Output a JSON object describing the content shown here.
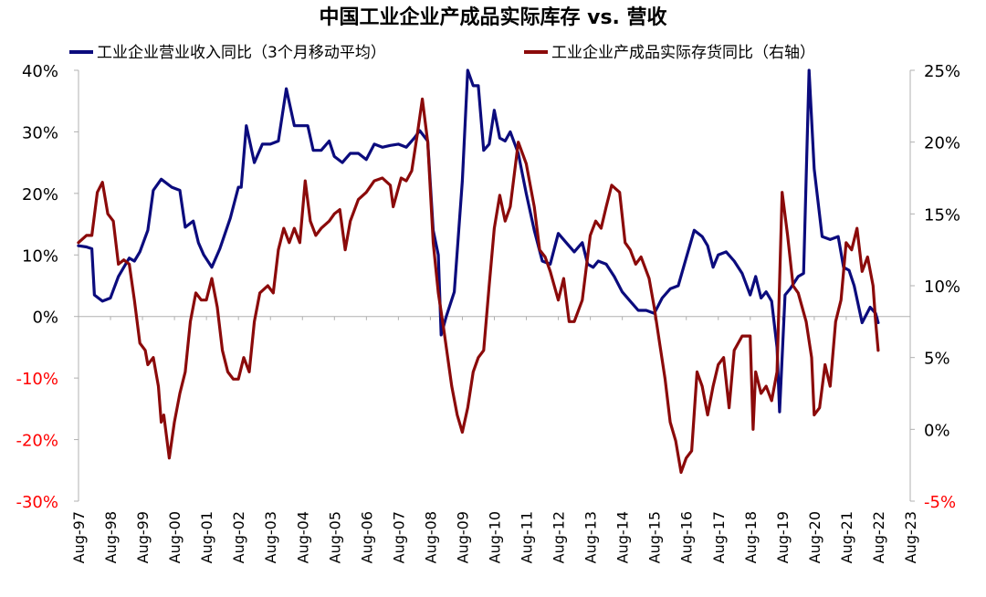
{
  "chart_data": {
    "type": "line",
    "title": "中国工业企业产成品实际库存 vs. 营收",
    "x_tick_labels": [
      "Aug-97",
      "Aug-98",
      "Aug-99",
      "Aug-00",
      "Aug-01",
      "Aug-02",
      "Aug-03",
      "Aug-04",
      "Aug-05",
      "Aug-06",
      "Aug-07",
      "Aug-08",
      "Aug-09",
      "Aug-10",
      "Aug-11",
      "Aug-12",
      "Aug-13",
      "Aug-14",
      "Aug-15",
      "Aug-16",
      "Aug-17",
      "Aug-18",
      "Aug-19",
      "Aug-20",
      "Aug-21",
      "Aug-22",
      "Aug-23"
    ],
    "x_range": [
      1997.583,
      2023.583
    ],
    "y_left": {
      "ylim": [
        -30,
        40
      ],
      "ticks": [
        -30,
        -20,
        -10,
        0,
        10,
        20,
        30,
        40
      ],
      "tick_labels": [
        "-30%",
        "-20%",
        "-10%",
        "0%",
        "10%",
        "20%",
        "30%",
        "40%"
      ],
      "positive_color": "#000000",
      "negative_color": "#ff0000"
    },
    "y_right": {
      "ylim": [
        -5,
        25
      ],
      "ticks": [
        -5,
        0,
        5,
        10,
        15,
        20,
        25
      ],
      "tick_labels": [
        "-5%",
        "0%",
        "5%",
        "10%",
        "15%",
        "20%",
        "25%"
      ],
      "positive_color": "#000000",
      "negative_color": "#ff0000"
    },
    "grid": false,
    "legend_position": "top",
    "series": [
      {
        "name": "工业企业营业收入同比（3个月移动平均）",
        "axis": "left",
        "color": "#0b0b7d",
        "points": [
          [
            1997.58,
            11.5
          ],
          [
            1997.83,
            11.3
          ],
          [
            1998.0,
            11.0
          ],
          [
            1998.08,
            3.5
          ],
          [
            1998.33,
            2.5
          ],
          [
            1998.58,
            3.0
          ],
          [
            1998.83,
            6.5
          ],
          [
            1999.0,
            8.0
          ],
          [
            1999.17,
            9.5
          ],
          [
            1999.33,
            9.0
          ],
          [
            1999.5,
            10.5
          ],
          [
            1999.75,
            14.0
          ],
          [
            1999.92,
            20.5
          ],
          [
            2000.17,
            22.3
          ],
          [
            2000.5,
            21.0
          ],
          [
            2000.75,
            20.5
          ],
          [
            2000.92,
            14.5
          ],
          [
            2001.17,
            15.5
          ],
          [
            2001.33,
            12.0
          ],
          [
            2001.5,
            10.0
          ],
          [
            2001.75,
            8.0
          ],
          [
            2002.0,
            11.0
          ],
          [
            2002.33,
            16.0
          ],
          [
            2002.58,
            21.0
          ],
          [
            2002.67,
            21.0
          ],
          [
            2002.83,
            31.0
          ],
          [
            2003.08,
            25.0
          ],
          [
            2003.33,
            28.0
          ],
          [
            2003.58,
            28.0
          ],
          [
            2003.83,
            28.5
          ],
          [
            2004.08,
            37.0
          ],
          [
            2004.33,
            31.0
          ],
          [
            2004.58,
            31.0
          ],
          [
            2004.75,
            31.0
          ],
          [
            2004.92,
            27.0
          ],
          [
            2005.17,
            27.0
          ],
          [
            2005.42,
            28.5
          ],
          [
            2005.58,
            26.0
          ],
          [
            2005.83,
            25.0
          ],
          [
            2006.08,
            26.5
          ],
          [
            2006.33,
            26.5
          ],
          [
            2006.58,
            25.5
          ],
          [
            2006.83,
            28.0
          ],
          [
            2007.08,
            27.5
          ],
          [
            2007.33,
            27.8
          ],
          [
            2007.58,
            28.0
          ],
          [
            2007.83,
            27.5
          ],
          [
            2008.08,
            29.0
          ],
          [
            2008.25,
            30.2
          ],
          [
            2008.5,
            28.5
          ],
          [
            2008.67,
            14.0
          ],
          [
            2008.83,
            10.0
          ],
          [
            2008.92,
            -3.0
          ],
          [
            2009.08,
            0.0
          ],
          [
            2009.33,
            4.0
          ],
          [
            2009.58,
            22.0
          ],
          [
            2009.75,
            40.0
          ],
          [
            2009.92,
            37.5
          ],
          [
            2010.08,
            37.5
          ],
          [
            2010.25,
            27.0
          ],
          [
            2010.42,
            28.0
          ],
          [
            2010.58,
            33.5
          ],
          [
            2010.75,
            29.0
          ],
          [
            2010.92,
            28.5
          ],
          [
            2011.08,
            30.0
          ],
          [
            2011.33,
            26.5
          ],
          [
            2011.58,
            20.0
          ],
          [
            2011.83,
            14.0
          ],
          [
            2012.08,
            9.0
          ],
          [
            2012.33,
            8.5
          ],
          [
            2012.58,
            13.5
          ],
          [
            2012.83,
            12.0
          ],
          [
            2013.08,
            10.5
          ],
          [
            2013.33,
            12.0
          ],
          [
            2013.5,
            8.5
          ],
          [
            2013.67,
            8.0
          ],
          [
            2013.83,
            9.0
          ],
          [
            2014.08,
            8.5
          ],
          [
            2014.33,
            6.5
          ],
          [
            2014.58,
            4.0
          ],
          [
            2014.83,
            2.5
          ],
          [
            2015.08,
            1.0
          ],
          [
            2015.33,
            1.0
          ],
          [
            2015.58,
            0.5
          ],
          [
            2015.83,
            3.0
          ],
          [
            2016.08,
            4.5
          ],
          [
            2016.33,
            5.0
          ],
          [
            2016.58,
            9.5
          ],
          [
            2016.83,
            14.0
          ],
          [
            2017.08,
            13.0
          ],
          [
            2017.25,
            11.5
          ],
          [
            2017.42,
            8.0
          ],
          [
            2017.58,
            10.0
          ],
          [
            2017.83,
            10.5
          ],
          [
            2018.08,
            9.0
          ],
          [
            2018.33,
            7.0
          ],
          [
            2018.58,
            3.5
          ],
          [
            2018.75,
            6.5
          ],
          [
            2018.92,
            3.0
          ],
          [
            2019.08,
            4.0
          ],
          [
            2019.25,
            2.5
          ],
          [
            2019.42,
            -5.0
          ],
          [
            2019.5,
            -15.5
          ],
          [
            2019.67,
            3.5
          ],
          [
            2019.83,
            4.5
          ],
          [
            2020.08,
            6.5
          ],
          [
            2020.25,
            7.0
          ],
          [
            2020.42,
            40.0
          ],
          [
            2020.58,
            24.0
          ],
          [
            2020.83,
            13.0
          ],
          [
            2021.08,
            12.5
          ],
          [
            2021.33,
            13.0
          ],
          [
            2021.5,
            8.0
          ],
          [
            2021.67,
            7.5
          ],
          [
            2021.83,
            5.0
          ],
          [
            2022.08,
            -1.0
          ],
          [
            2022.33,
            1.5
          ],
          [
            2022.5,
            0.5
          ],
          [
            2022.58,
            -1.0
          ]
        ]
      },
      {
        "name": "工业企业产成品实际存货同比（右轴）",
        "axis": "right",
        "color": "#8b0a0a",
        "points": [
          [
            1997.58,
            13.0
          ],
          [
            1997.83,
            13.5
          ],
          [
            1998.0,
            13.5
          ],
          [
            1998.17,
            16.5
          ],
          [
            1998.33,
            17.2
          ],
          [
            1998.5,
            15.0
          ],
          [
            1998.67,
            14.5
          ],
          [
            1998.83,
            11.5
          ],
          [
            1999.0,
            11.8
          ],
          [
            1999.17,
            11.5
          ],
          [
            1999.33,
            9.0
          ],
          [
            1999.5,
            6.0
          ],
          [
            1999.67,
            5.5
          ],
          [
            1999.75,
            4.5
          ],
          [
            1999.92,
            5.0
          ],
          [
            2000.08,
            3.0
          ],
          [
            2000.17,
            0.5
          ],
          [
            2000.25,
            1.0
          ],
          [
            2000.42,
            -2.0
          ],
          [
            2000.58,
            0.5
          ],
          [
            2000.75,
            2.5
          ],
          [
            2000.92,
            4.0
          ],
          [
            2001.08,
            7.5
          ],
          [
            2001.25,
            9.5
          ],
          [
            2001.42,
            9.0
          ],
          [
            2001.58,
            9.0
          ],
          [
            2001.75,
            10.5
          ],
          [
            2001.92,
            8.5
          ],
          [
            2002.08,
            5.5
          ],
          [
            2002.25,
            4.0
          ],
          [
            2002.42,
            3.5
          ],
          [
            2002.58,
            3.5
          ],
          [
            2002.75,
            5.0
          ],
          [
            2002.92,
            4.0
          ],
          [
            2003.08,
            7.5
          ],
          [
            2003.25,
            9.5
          ],
          [
            2003.5,
            10.0
          ],
          [
            2003.67,
            9.5
          ],
          [
            2003.83,
            12.5
          ],
          [
            2004.0,
            14.0
          ],
          [
            2004.17,
            13.0
          ],
          [
            2004.33,
            14.0
          ],
          [
            2004.5,
            13.0
          ],
          [
            2004.67,
            17.3
          ],
          [
            2004.83,
            14.5
          ],
          [
            2005.0,
            13.5
          ],
          [
            2005.17,
            14.0
          ],
          [
            2005.42,
            14.5
          ],
          [
            2005.58,
            15.0
          ],
          [
            2005.75,
            15.3
          ],
          [
            2005.92,
            12.5
          ],
          [
            2006.08,
            14.5
          ],
          [
            2006.33,
            16.0
          ],
          [
            2006.58,
            16.5
          ],
          [
            2006.83,
            17.3
          ],
          [
            2007.08,
            17.5
          ],
          [
            2007.33,
            17.0
          ],
          [
            2007.42,
            15.5
          ],
          [
            2007.67,
            17.5
          ],
          [
            2007.83,
            17.3
          ],
          [
            2008.0,
            18.0
          ],
          [
            2008.17,
            20.5
          ],
          [
            2008.33,
            23.0
          ],
          [
            2008.5,
            20.0
          ],
          [
            2008.67,
            13.0
          ],
          [
            2008.83,
            9.5
          ],
          [
            2009.0,
            7.0
          ],
          [
            2009.25,
            3.0
          ],
          [
            2009.42,
            1.0
          ],
          [
            2009.58,
            -0.2
          ],
          [
            2009.75,
            1.5
          ],
          [
            2009.92,
            4.0
          ],
          [
            2010.08,
            5.0
          ],
          [
            2010.25,
            5.5
          ],
          [
            2010.42,
            10.0
          ],
          [
            2010.58,
            14.0
          ],
          [
            2010.75,
            16.3
          ],
          [
            2010.92,
            14.5
          ],
          [
            2011.08,
            15.5
          ],
          [
            2011.33,
            20.0
          ],
          [
            2011.58,
            18.5
          ],
          [
            2011.83,
            15.5
          ],
          [
            2012.0,
            12.5
          ],
          [
            2012.17,
            12.0
          ],
          [
            2012.33,
            11.0
          ],
          [
            2012.58,
            9.0
          ],
          [
            2012.75,
            10.5
          ],
          [
            2012.92,
            7.5
          ],
          [
            2013.08,
            7.5
          ],
          [
            2013.33,
            9.0
          ],
          [
            2013.58,
            13.5
          ],
          [
            2013.75,
            14.5
          ],
          [
            2013.92,
            14.0
          ],
          [
            2014.08,
            15.5
          ],
          [
            2014.25,
            17.0
          ],
          [
            2014.5,
            16.5
          ],
          [
            2014.67,
            13.0
          ],
          [
            2014.83,
            12.5
          ],
          [
            2015.0,
            11.5
          ],
          [
            2015.17,
            12.0
          ],
          [
            2015.42,
            10.5
          ],
          [
            2015.58,
            8.5
          ],
          [
            2015.75,
            6.0
          ],
          [
            2015.92,
            3.5
          ],
          [
            2016.08,
            0.5
          ],
          [
            2016.25,
            -0.8
          ],
          [
            2016.42,
            -3.0
          ],
          [
            2016.58,
            -2.0
          ],
          [
            2016.75,
            -1.5
          ],
          [
            2016.92,
            4.0
          ],
          [
            2017.08,
            3.0
          ],
          [
            2017.25,
            1.0
          ],
          [
            2017.42,
            3.0
          ],
          [
            2017.58,
            4.5
          ],
          [
            2017.75,
            5.0
          ],
          [
            2017.92,
            1.5
          ],
          [
            2018.08,
            5.5
          ],
          [
            2018.33,
            6.5
          ],
          [
            2018.58,
            6.5
          ],
          [
            2018.67,
            0.0
          ],
          [
            2018.75,
            4.0
          ],
          [
            2018.92,
            2.5
          ],
          [
            2019.08,
            3.0
          ],
          [
            2019.25,
            2.0
          ],
          [
            2019.42,
            4.0
          ],
          [
            2019.58,
            16.5
          ],
          [
            2019.75,
            13.5
          ],
          [
            2019.92,
            10.0
          ],
          [
            2020.08,
            9.5
          ],
          [
            2020.33,
            7.5
          ],
          [
            2020.5,
            5.0
          ],
          [
            2020.58,
            1.0
          ],
          [
            2020.75,
            1.5
          ],
          [
            2020.92,
            4.5
          ],
          [
            2021.08,
            3.0
          ],
          [
            2021.25,
            7.5
          ],
          [
            2021.42,
            9.0
          ],
          [
            2021.58,
            13.0
          ],
          [
            2021.75,
            12.5
          ],
          [
            2021.92,
            14.0
          ],
          [
            2022.08,
            11.0
          ],
          [
            2022.25,
            12.0
          ],
          [
            2022.42,
            10.0
          ],
          [
            2022.5,
            7.5
          ],
          [
            2022.58,
            5.5
          ]
        ]
      }
    ]
  }
}
